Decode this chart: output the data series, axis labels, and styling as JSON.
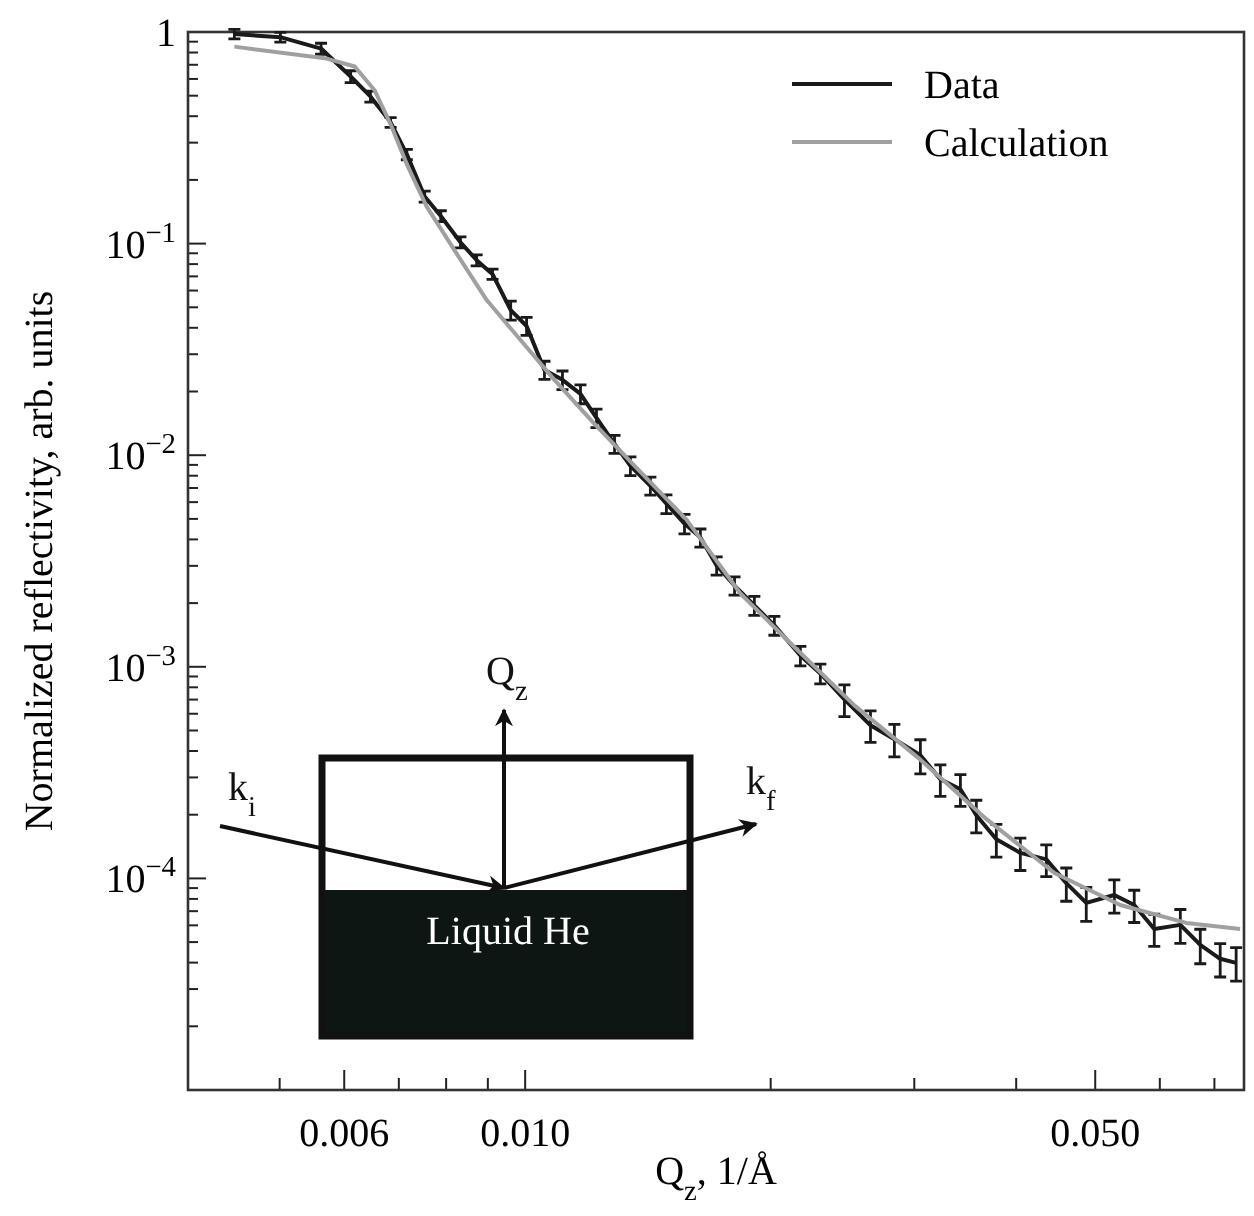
{
  "chart_data": {
    "type": "line",
    "xlabel": "Q$_{z}$, 1/Å",
    "ylabel": "Normalized reflectivity, arb. units",
    "log": "xy",
    "xlim": [
      0.00386,
      0.0761
    ],
    "ylim": [
      1e-05,
      1
    ],
    "xticks": [
      {
        "value": 0.005,
        "label": null
      },
      {
        "value": 0.006,
        "label": "0.006"
      },
      {
        "value": 0.007,
        "label": null
      },
      {
        "value": 0.008,
        "label": null
      },
      {
        "value": 0.009,
        "label": null
      },
      {
        "value": 0.01,
        "label": "0.010"
      },
      {
        "value": 0.02,
        "label": null
      },
      {
        "value": 0.03,
        "label": null
      },
      {
        "value": 0.04,
        "label": null
      },
      {
        "value": 0.05,
        "label": "0.050"
      },
      {
        "value": 0.06,
        "label": null
      },
      {
        "value": 0.07,
        "label": null
      }
    ],
    "yticks": [
      {
        "value": 2e-05,
        "label": null
      },
      {
        "value": 3e-05,
        "label": null
      },
      {
        "value": 4e-05,
        "label": null
      },
      {
        "value": 5e-05,
        "label": null
      },
      {
        "value": 6e-05,
        "label": null
      },
      {
        "value": 7e-05,
        "label": null
      },
      {
        "value": 8e-05,
        "label": null
      },
      {
        "value": 9e-05,
        "label": null
      },
      {
        "value": 0.0001,
        "label": "10$^{−4}$"
      },
      {
        "value": 0.0002,
        "label": null
      },
      {
        "value": 0.0003,
        "label": null
      },
      {
        "value": 0.0004,
        "label": null
      },
      {
        "value": 0.0005,
        "label": null
      },
      {
        "value": 0.0006,
        "label": null
      },
      {
        "value": 0.0007,
        "label": null
      },
      {
        "value": 0.0008,
        "label": null
      },
      {
        "value": 0.0009,
        "label": null
      },
      {
        "value": 0.001,
        "label": "10$^{−3}$"
      },
      {
        "value": 0.002,
        "label": null
      },
      {
        "value": 0.003,
        "label": null
      },
      {
        "value": 0.004,
        "label": null
      },
      {
        "value": 0.005,
        "label": null
      },
      {
        "value": 0.006,
        "label": null
      },
      {
        "value": 0.007,
        "label": null
      },
      {
        "value": 0.008,
        "label": null
      },
      {
        "value": 0.009,
        "label": null
      },
      {
        "value": 0.01,
        "label": "10$^{−2}$"
      },
      {
        "value": 0.02,
        "label": null
      },
      {
        "value": 0.03,
        "label": null
      },
      {
        "value": 0.04,
        "label": null
      },
      {
        "value": 0.05,
        "label": null
      },
      {
        "value": 0.06,
        "label": null
      },
      {
        "value": 0.07,
        "label": null
      },
      {
        "value": 0.08,
        "label": null
      },
      {
        "value": 0.09,
        "label": null
      },
      {
        "value": 0.1,
        "label": "10$^{−1}$"
      },
      {
        "value": 0.2,
        "label": null
      },
      {
        "value": 0.3,
        "label": null
      },
      {
        "value": 0.4,
        "label": null
      },
      {
        "value": 0.5,
        "label": null
      },
      {
        "value": 0.6,
        "label": null
      },
      {
        "value": 0.7,
        "label": null
      },
      {
        "value": 0.8,
        "label": null
      },
      {
        "value": 0.9,
        "label": null
      },
      {
        "value": 1,
        "label": "1"
      }
    ],
    "legend": "top right",
    "line_style": "solid",
    "series": [
      {
        "name": "Data",
        "color": "#1a1a1a",
        "x": [
          0.0044,
          0.00501,
          0.00562,
          0.00611,
          0.00646,
          0.00684,
          0.00716,
          0.00753,
          0.00788,
          0.00833,
          0.00872,
          0.00912,
          0.0096,
          0.01004,
          0.01056,
          0.01111,
          0.01169,
          0.01223,
          0.01287,
          0.01346,
          0.01424,
          0.0149,
          0.01568,
          0.0164,
          0.01717,
          0.01806,
          0.0191,
          0.02021,
          0.02175,
          0.02301,
          0.02463,
          0.02651,
          0.02836,
          0.03052,
          0.03229,
          0.03417,
          0.03574,
          0.03782,
          0.04047,
          0.04355,
          0.04608,
          0.04875,
          0.05277,
          0.05582,
          0.05907,
          0.06358,
          0.06726,
          0.07115,
          0.07443
        ],
        "values": [
          0.978,
          0.945,
          0.835,
          0.616,
          0.496,
          0.374,
          0.264,
          0.167,
          0.135,
          0.1015,
          0.0835,
          0.0717,
          0.0485,
          0.0408,
          0.0253,
          0.0227,
          0.0195,
          0.015,
          0.0113,
          0.00891,
          0.00717,
          0.0059,
          0.00475,
          0.00408,
          0.00301,
          0.00242,
          0.00195,
          0.00157,
          0.00113,
          0.00093,
          0.000702,
          0.000529,
          0.000455,
          0.000382,
          0.000294,
          0.000264,
          0.000199,
          0.000153,
          0.000132,
          0.000123,
          9.5e-05,
          7.66e-05,
          8.35e-05,
          7.49e-05,
          5.77e-05,
          6.03e-05,
          4.85e-05,
          4.17e-05,
          3.99e-05
        ],
        "errors": [
          0.05,
          0.05,
          0.05,
          0.04,
          0.03,
          0.02,
          0.015,
          0.01,
          0.008,
          0.006,
          0.005,
          0.004,
          0.005,
          0.004,
          0.0025,
          0.0023,
          0.002,
          0.0015,
          0.0011,
          0.0009,
          0.0007,
          0.0006,
          0.0005,
          0.0004,
          0.0003,
          0.00024,
          0.0002,
          0.00016,
          0.00012,
          0.0001,
          0.00012,
          9e-05,
          8e-05,
          7e-05,
          5e-05,
          4.5e-05,
          3.5e-05,
          2.7e-05,
          2.3e-05,
          2.1e-05,
          1.7e-05,
          1.4e-05,
          1.5e-05,
          1.3e-05,
          1e-05,
          1.1e-05,
          9e-06,
          7.5e-06,
          7.2e-06
        ]
      },
      {
        "name": "Calculation",
        "color": "#a0a0a0",
        "x": [
          0.0044,
          0.00571,
          0.00618,
          0.00654,
          0.00684,
          0.00716,
          0.00757,
          0.00819,
          0.00897,
          0.00987,
          0.01086,
          0.01216,
          0.01362,
          0.01577,
          0.01836,
          0.02091,
          0.02533,
          0.03052,
          0.03676,
          0.04456,
          0.05366,
          0.06465,
          0.07527
        ],
        "values": [
          0.853,
          0.749,
          0.687,
          0.529,
          0.366,
          0.237,
          0.15,
          0.0931,
          0.0541,
          0.035,
          0.0227,
          0.01406,
          0.00891,
          0.00496,
          0.00222,
          0.00135,
          0.000657,
          0.000364,
          0.000191,
          0.000106,
          7.49e-05,
          6.16e-05,
          5.77e-05
        ]
      }
    ],
    "annotations": [
      "k$_{i}$",
      "Q$_{z}$",
      "k$_{f}$",
      "Liquid He"
    ]
  }
}
